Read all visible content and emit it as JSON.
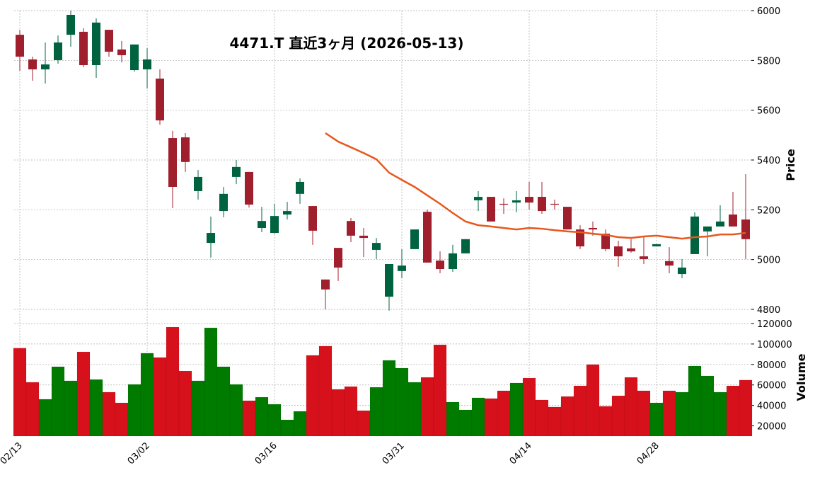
{
  "chart_data": {
    "type": "candlestick",
    "title": "4471.T  直近3ヶ月  (2026-05-13)",
    "ylabel": "Price",
    "volume_ylabel": "Volume",
    "categories": [
      "02/13",
      null,
      null,
      null,
      null,
      null,
      null,
      null,
      null,
      null,
      "03/02",
      null,
      null,
      null,
      null,
      null,
      null,
      null,
      null,
      null,
      "03/16",
      null,
      null,
      null,
      null,
      null,
      null,
      null,
      null,
      null,
      "03/31",
      null,
      null,
      null,
      null,
      null,
      null,
      null,
      null,
      null,
      "04/14",
      null,
      null,
      null,
      null,
      null,
      null,
      null,
      null,
      null,
      "04/28",
      null,
      null,
      null,
      null,
      null,
      null,
      null
    ],
    "open": [
      5903,
      5804,
      5764,
      5801,
      5903,
      5915,
      5781,
      5923,
      5844,
      5761,
      5764,
      5727,
      5488,
      5491,
      5275,
      5067,
      5195,
      5332,
      5352,
      5127,
      5107,
      5181,
      5264,
      5215,
      4920,
      5047,
      5155,
      5096,
      5039,
      4851,
      4954,
      5042,
      5192,
      4996,
      4962,
      5025,
      5238,
      5252,
      5224,
      5229,
      5252,
      5252,
      5224,
      5212,
      5121,
      5127,
      5104,
      5053,
      5045,
      5013,
      5053,
      4994,
      4942,
      5022,
      5113,
      5133,
      5181,
      5161
    ],
    "high": [
      5923,
      5815,
      5872,
      5900,
      6000,
      5929,
      5969,
      5923,
      5878,
      5864,
      5849,
      5764,
      5517,
      5508,
      5360,
      5173,
      5292,
      5400,
      5352,
      5212,
      5224,
      5232,
      5326,
      5215,
      4920,
      5047,
      5167,
      5127,
      5087,
      4982,
      5042,
      5121,
      5201,
      5033,
      5059,
      5082,
      5275,
      5252,
      5246,
      5275,
      5312,
      5312,
      5241,
      5212,
      5138,
      5153,
      5121,
      5076,
      5082,
      5093,
      5062,
      5050,
      5002,
      5190,
      5133,
      5218,
      5272,
      5343
    ],
    "low": [
      5758,
      5718,
      5707,
      5787,
      5855,
      5773,
      5730,
      5815,
      5792,
      5755,
      5687,
      5542,
      5207,
      5352,
      5241,
      5008,
      5170,
      5303,
      5209,
      5110,
      5104,
      5161,
      5224,
      5059,
      4800,
      4914,
      5070,
      5010,
      5002,
      4795,
      4925,
      5042,
      4988,
      4945,
      4951,
      5025,
      5195,
      5153,
      5184,
      5190,
      5201,
      5184,
      5201,
      5121,
      5042,
      5096,
      5033,
      4971,
      5028,
      4982,
      5053,
      4945,
      4925,
      5022,
      5013,
      5133,
      5133,
      5002
    ],
    "close": [
      5815,
      5764,
      5784,
      5872,
      5983,
      5781,
      5952,
      5835,
      5821,
      5864,
      5804,
      5559,
      5292,
      5392,
      5332,
      5107,
      5264,
      5372,
      5221,
      5155,
      5175,
      5195,
      5312,
      5116,
      4880,
      4968,
      5096,
      5087,
      5067,
      4982,
      4976,
      5121,
      4988,
      4962,
      5025,
      5082,
      5252,
      5153,
      5221,
      5238,
      5229,
      5195,
      5221,
      5121,
      5053,
      5121,
      5042,
      5013,
      5033,
      5002,
      5062,
      4976,
      4968,
      5173,
      5133,
      5153,
      5133,
      5082
    ],
    "volume": [
      96000,
      62600,
      46000,
      77800,
      64000,
      92300,
      65300,
      52900,
      42500,
      60500,
      91000,
      86800,
      116500,
      73600,
      64000,
      115800,
      77800,
      60500,
      44600,
      48000,
      41100,
      25900,
      34200,
      88900,
      97900,
      55700,
      58400,
      34900,
      57700,
      84000,
      76400,
      62600,
      67400,
      99200,
      43200,
      35600,
      47400,
      46700,
      54300,
      61900,
      66700,
      45300,
      38400,
      48700,
      59100,
      79900,
      39100,
      49400,
      67400,
      54300,
      42500,
      54300,
      52900,
      78500,
      68800,
      52900,
      59100,
      64700
    ],
    "moving_average": {
      "color": "#e8571c",
      "values": [
        null,
        null,
        null,
        null,
        null,
        null,
        null,
        null,
        null,
        null,
        null,
        null,
        null,
        null,
        null,
        null,
        null,
        null,
        null,
        null,
        null,
        null,
        null,
        null,
        5508,
        5474,
        5451,
        5428,
        5403,
        5349,
        5320,
        5292,
        5258,
        5224,
        5187,
        5153,
        5138,
        5133,
        5127,
        5121,
        5127,
        5124,
        5118,
        5113,
        5110,
        5104,
        5099,
        5090,
        5087,
        5093,
        5096,
        5090,
        5084,
        5090,
        5093,
        5101,
        5101,
        5107
      ]
    },
    "up_color": "#006340",
    "down_color": "#a01f2d",
    "volume_up_color": "#007b00",
    "volume_down_color": "#d7111b",
    "ylim": [
      4800,
      6000
    ],
    "yticks": [
      4800,
      5000,
      5200,
      5400,
      5600,
      5800,
      6000
    ],
    "volume_ylim": [
      10000,
      120000
    ],
    "volume_yticks": [
      20000,
      40000,
      60000,
      80000,
      100000,
      120000
    ],
    "grid": true
  }
}
